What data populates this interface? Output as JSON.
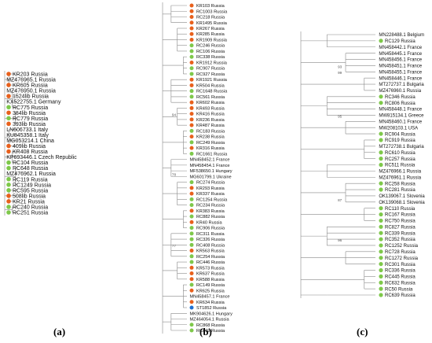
{
  "colors": {
    "orange": "#e8601c",
    "green": "#7ec84a",
    "blue": "#1f6fd1",
    "branch": "#888888"
  },
  "panels": [
    {
      "id": "a",
      "label": "(a)",
      "leaves": [
        {
          "text": "KR203 Russia",
          "dot": "orange"
        },
        {
          "text": "MZ476965.1 Russia",
          "dot": "none"
        },
        {
          "text": "KR605 Russia",
          "dot": "orange"
        },
        {
          "text": "MZ476950.1 Russia",
          "dot": "none"
        },
        {
          "text": "1524lib Russia",
          "dot": "orange"
        },
        {
          "text": "KX522755.1 Germany",
          "dot": "none"
        },
        {
          "text": "RC775 Russia",
          "dot": "green"
        },
        {
          "text": "384lib Russia",
          "dot": "orange"
        },
        {
          "text": "RC779 Russia",
          "dot": "green"
        },
        {
          "text": "393lib Russia",
          "dot": "orange"
        },
        {
          "text": "LN606733.1 Italy",
          "dot": "none"
        },
        {
          "text": "KU845358.1 Italy",
          "dot": "none"
        },
        {
          "text": "MG053214.1 China",
          "dot": "none"
        },
        {
          "text": "409lib Russia",
          "dot": "orange"
        },
        {
          "text": "KR408 Russia",
          "dot": "orange"
        },
        {
          "text": "KP693446.1 Czech Republic",
          "dot": "none"
        },
        {
          "text": "RC104 Russia",
          "dot": "green"
        },
        {
          "text": "RC648 Russia",
          "dot": "green"
        },
        {
          "text": "MZ476962.1 Russia",
          "dot": "none"
        },
        {
          "text": "RC119 Russia",
          "dot": "green"
        },
        {
          "text": "RC1249 Russia",
          "dot": "green"
        },
        {
          "text": "RC595 Russia",
          "dot": "green"
        },
        {
          "text": "508lib Russia",
          "dot": "orange"
        },
        {
          "text": "KR21 Russia",
          "dot": "orange"
        },
        {
          "text": "RC240 Russia",
          "dot": "green"
        },
        {
          "text": "RC251 Russia",
          "dot": "green"
        }
      ]
    },
    {
      "id": "b",
      "label": "(b)",
      "leaves": [
        {
          "text": "KR103 Russia",
          "dot": "orange"
        },
        {
          "text": "RC1003 Russia",
          "dot": "orange"
        },
        {
          "text": "RC218 Russia",
          "dot": "orange"
        },
        {
          "text": "KR1495 Russia",
          "dot": "orange"
        },
        {
          "text": "KR267 Russia",
          "dot": "orange"
        },
        {
          "text": "KR285 Russia",
          "dot": "orange"
        },
        {
          "text": "KR1909 Russia",
          "dot": "orange"
        },
        {
          "text": "RC246 Russia",
          "dot": "green"
        },
        {
          "text": "RC106 Russia",
          "dot": "green"
        },
        {
          "text": "RC338 Russia",
          "dot": "green"
        },
        {
          "text": "KR1912 Russia",
          "dot": "orange"
        },
        {
          "text": "RC907 Russia",
          "dot": "green"
        },
        {
          "text": "RC927 Russia",
          "dot": "green"
        },
        {
          "text": "KR1921 Russia",
          "dot": "orange"
        },
        {
          "text": "KR504 Russia",
          "dot": "orange"
        },
        {
          "text": "RC1648 Russia",
          "dot": "green"
        },
        {
          "text": "RC561 Russia",
          "dot": "green"
        },
        {
          "text": "KR602 Russia",
          "dot": "orange"
        },
        {
          "text": "KR493 Russia",
          "dot": "orange"
        },
        {
          "text": "KR416 Russia",
          "dot": "orange"
        },
        {
          "text": "KR236 Russia",
          "dot": "orange"
        },
        {
          "text": "KR487 Russia",
          "dot": "orange"
        },
        {
          "text": "RC183 Russia",
          "dot": "green"
        },
        {
          "text": "KR238 Russia",
          "dot": "orange"
        },
        {
          "text": "RC249 Russia",
          "dot": "green"
        },
        {
          "text": "KR316 Russia",
          "dot": "orange"
        },
        {
          "text": "RC1661 Russia",
          "dot": "green"
        },
        {
          "text": "MN458452.1 France",
          "dot": "none"
        },
        {
          "text": "MN458454.1 France",
          "dot": "none"
        },
        {
          "text": "MF538650.1 Hungary",
          "dot": "none"
        },
        {
          "text": "MG601799.1 Ukraine",
          "dot": "none"
        },
        {
          "text": "RC274 Russia",
          "dot": "green"
        },
        {
          "text": "KR293 Russia",
          "dot": "orange"
        },
        {
          "text": "KR337 Russia",
          "dot": "orange"
        },
        {
          "text": "RC1254 Russia",
          "dot": "green"
        },
        {
          "text": "RC234 Russia",
          "dot": "green"
        },
        {
          "text": "KR383 Russia",
          "dot": "orange"
        },
        {
          "text": "RC882 Russia",
          "dot": "green"
        },
        {
          "text": "KR40 Russia",
          "dot": "orange"
        },
        {
          "text": "RC906 Russia",
          "dot": "green"
        },
        {
          "text": "RC311 Russia",
          "dot": "green"
        },
        {
          "text": "RC326 Russia",
          "dot": "green"
        },
        {
          "text": "RC408 Russia",
          "dot": "green"
        },
        {
          "text": "KR563 Russia",
          "dot": "orange"
        },
        {
          "text": "RC254 Russia",
          "dot": "green"
        },
        {
          "text": "RC446 Russia",
          "dot": "green"
        },
        {
          "text": "KR573 Russia",
          "dot": "orange"
        },
        {
          "text": "KR637 Russia",
          "dot": "orange"
        },
        {
          "text": "KR588 Russia",
          "dot": "orange"
        },
        {
          "text": "RC149 Russia",
          "dot": "green"
        },
        {
          "text": "KR625 Russia",
          "dot": "orange"
        },
        {
          "text": "MN458457.1 France",
          "dot": "none"
        },
        {
          "text": "KR634 Russia",
          "dot": "orange"
        },
        {
          "text": "ST1852 Russia",
          "dot": "blue"
        },
        {
          "text": "MK904626.1 Hungary",
          "dot": "none"
        },
        {
          "text": "MZ464054.1 Russia",
          "dot": "none"
        },
        {
          "text": "RC868 Russia",
          "dot": "green"
        },
        {
          "text": "RC869 Russia",
          "dot": "green"
        }
      ],
      "bootstrap": [
        {
          "text": "94",
          "leaf": 19.5
        },
        {
          "text": "78",
          "leaf": 30.0
        },
        {
          "text": "77",
          "leaf": 42.5
        }
      ]
    },
    {
      "id": "c",
      "label": "(c)",
      "leaves": [
        {
          "text": "MN228488.1 Belgium",
          "dot": "none"
        },
        {
          "text": "RC129 Russia",
          "dot": "green"
        },
        {
          "text": "MN458442.1 France",
          "dot": "none"
        },
        {
          "text": "MN458445.1 France",
          "dot": "none"
        },
        {
          "text": "MN458456.1 France",
          "dot": "none"
        },
        {
          "text": "MN458451.1 France",
          "dot": "none"
        },
        {
          "text": "MN458455.1 France",
          "dot": "none"
        },
        {
          "text": "MN458446.1 France",
          "dot": "none"
        },
        {
          "text": "MT272737.1 Bulgaria",
          "dot": "none"
        },
        {
          "text": "MZ476960.1 Russia",
          "dot": "none"
        },
        {
          "text": "RC346 Russia",
          "dot": "green"
        },
        {
          "text": "RC806 Russia",
          "dot": "green"
        },
        {
          "text": "MN458448.1 France",
          "dot": "none"
        },
        {
          "text": "MW815134.1 Greece",
          "dot": "none"
        },
        {
          "text": "MN458460.1 France",
          "dot": "none"
        },
        {
          "text": "MW208103.1 USA",
          "dot": "none"
        },
        {
          "text": "RC904 Russia",
          "dot": "green"
        },
        {
          "text": "RC919 Russia",
          "dot": "green"
        },
        {
          "text": "MT272738.1 Bulgaria",
          "dot": "none"
        },
        {
          "text": "RC610 Russia",
          "dot": "green"
        },
        {
          "text": "RC257 Russia",
          "dot": "green"
        },
        {
          "text": "RC511 Russia",
          "dot": "green"
        },
        {
          "text": "MZ476966.1 Russia",
          "dot": "none"
        },
        {
          "text": "MZ476961.1 Russia",
          "dot": "none"
        },
        {
          "text": "RC258 Russia",
          "dot": "green"
        },
        {
          "text": "RC281 Russia",
          "dot": "green"
        },
        {
          "text": "OK139067.1 Slovenia",
          "dot": "none"
        },
        {
          "text": "OK139068.1 Slovenia",
          "dot": "none"
        },
        {
          "text": "RC110 Russia",
          "dot": "green"
        },
        {
          "text": "RC167 Russia",
          "dot": "green"
        },
        {
          "text": "RC750 Russia",
          "dot": "green"
        },
        {
          "text": "RC827 Russia",
          "dot": "green"
        },
        {
          "text": "RC339 Russia",
          "dot": "green"
        },
        {
          "text": "RC352 Russia",
          "dot": "green"
        },
        {
          "text": "RC1252 Russia",
          "dot": "green"
        },
        {
          "text": "RC728 Russia",
          "dot": "green"
        },
        {
          "text": "RC1272 Russia",
          "dot": "green"
        },
        {
          "text": "RC301 Russia",
          "dot": "green"
        },
        {
          "text": "RC336 Russia",
          "dot": "green"
        },
        {
          "text": "RC445 Russia",
          "dot": "green"
        },
        {
          "text": "RC632 Russia",
          "dot": "green"
        },
        {
          "text": "RC50 Russia",
          "dot": "green"
        },
        {
          "text": "RC639 Russia",
          "dot": "green"
        }
      ],
      "bootstrap": [
        {
          "text": "93",
          "leaf": 5.5
        },
        {
          "text": "99",
          "leaf": 6.5
        },
        {
          "text": "95",
          "leaf": 13.5
        },
        {
          "text": "87",
          "leaf": 27.0
        },
        {
          "text": "96",
          "leaf": 33.5
        }
      ]
    }
  ]
}
